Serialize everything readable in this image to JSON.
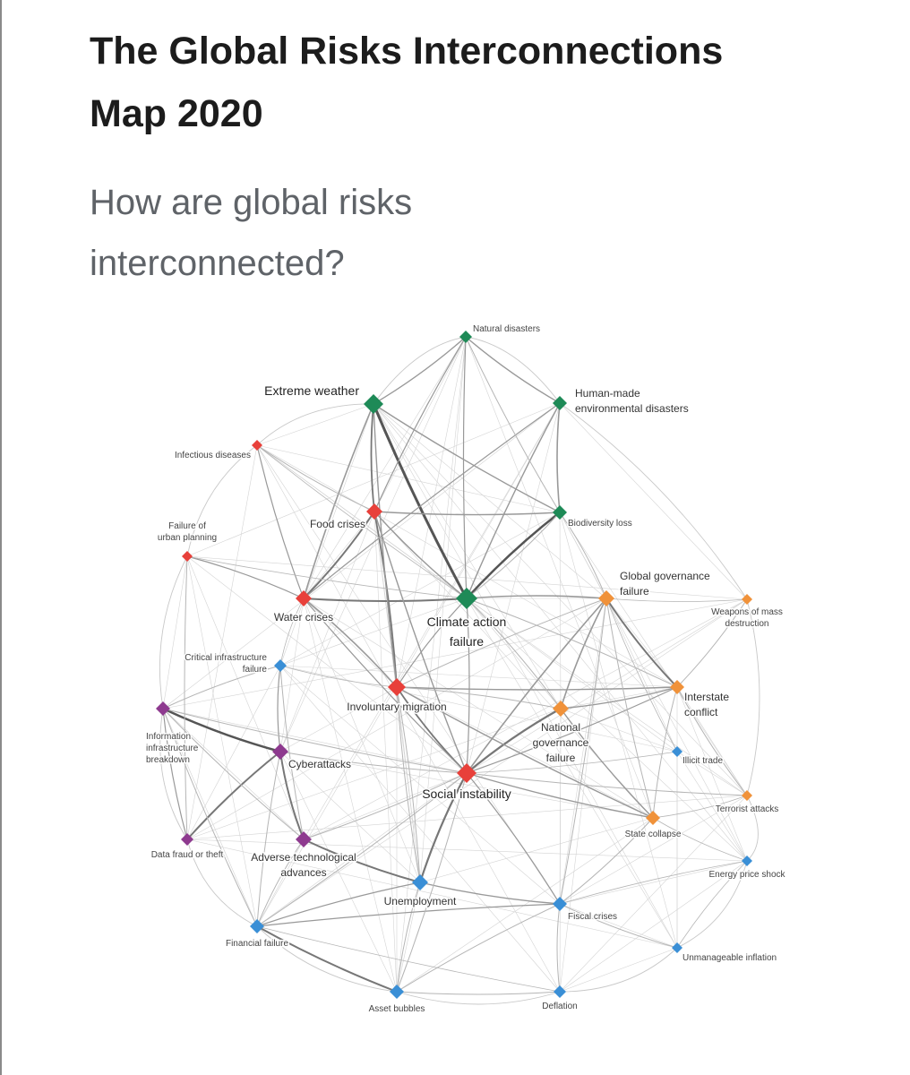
{
  "header": {
    "title_line1": "The Global Risks Interconnections",
    "title_line2": "Map 2020",
    "subtitle_line1": "How are global risks",
    "subtitle_line2": "interconnected?"
  },
  "colors": {
    "environmental": "#1e8a57",
    "societal": "#e8403a",
    "geopolitical": "#f0923a",
    "technological": "#8e3a8f",
    "economic": "#3a8fd6",
    "edge": "#9a9a9a"
  },
  "nodes": [
    {
      "id": "natural-disasters",
      "lines": [
        "Natural disasters"
      ],
      "category": "environmental"
    },
    {
      "id": "extreme-weather",
      "lines": [
        "Extreme weather"
      ],
      "category": "environmental"
    },
    {
      "id": "human-made-env",
      "lines": [
        "Human-made",
        "environmental disasters"
      ],
      "category": "environmental"
    },
    {
      "id": "infectious-diseases",
      "lines": [
        "Infectious diseases"
      ],
      "category": "societal"
    },
    {
      "id": "food-crises",
      "lines": [
        "Food crises"
      ],
      "category": "societal"
    },
    {
      "id": "biodiversity-loss",
      "lines": [
        "Biodiversity loss"
      ],
      "category": "environmental"
    },
    {
      "id": "urban-planning",
      "lines": [
        "Failure of",
        "urban planning"
      ],
      "category": "societal"
    },
    {
      "id": "global-governance",
      "lines": [
        "Global governance",
        "failure"
      ],
      "category": "geopolitical"
    },
    {
      "id": "water-crises",
      "lines": [
        "Water crises"
      ],
      "category": "societal"
    },
    {
      "id": "climate-action",
      "lines": [
        "Climate action",
        "failure"
      ],
      "category": "environmental"
    },
    {
      "id": "wmd",
      "lines": [
        "Weapons of mass",
        "destruction"
      ],
      "category": "geopolitical"
    },
    {
      "id": "critical-infra",
      "lines": [
        "Critical infrastructure",
        "failure"
      ],
      "category": "economic"
    },
    {
      "id": "involuntary-migration",
      "lines": [
        "Involuntary migration"
      ],
      "category": "societal"
    },
    {
      "id": "interstate-conflict",
      "lines": [
        "Interstate",
        "conflict"
      ],
      "category": "geopolitical"
    },
    {
      "id": "info-infra",
      "lines": [
        "Information",
        "infrastructure",
        "breakdown"
      ],
      "category": "technological"
    },
    {
      "id": "national-governance",
      "lines": [
        "National",
        "governance",
        "failure"
      ],
      "category": "geopolitical"
    },
    {
      "id": "cyberattacks",
      "lines": [
        "Cyberattacks"
      ],
      "category": "technological"
    },
    {
      "id": "illicit-trade",
      "lines": [
        "Illicit trade"
      ],
      "category": "economic"
    },
    {
      "id": "social-instability",
      "lines": [
        "Social instability"
      ],
      "category": "societal"
    },
    {
      "id": "terrorist-attacks",
      "lines": [
        "Terrorist attacks"
      ],
      "category": "geopolitical"
    },
    {
      "id": "state-collapse",
      "lines": [
        "State collapse"
      ],
      "category": "geopolitical"
    },
    {
      "id": "data-fraud",
      "lines": [
        "Data fraud or theft"
      ],
      "category": "technological"
    },
    {
      "id": "adverse-tech",
      "lines": [
        "Adverse technological",
        "advances"
      ],
      "category": "technological"
    },
    {
      "id": "energy-price",
      "lines": [
        "Energy price shock"
      ],
      "category": "economic"
    },
    {
      "id": "unemployment",
      "lines": [
        "Unemployment"
      ],
      "category": "economic"
    },
    {
      "id": "fiscal-crises",
      "lines": [
        "Fiscal crises"
      ],
      "category": "economic"
    },
    {
      "id": "financial-failure",
      "lines": [
        "Financial failure"
      ],
      "category": "economic"
    },
    {
      "id": "unmanageable-inflation",
      "lines": [
        "Unmanageable inflation"
      ],
      "category": "economic"
    },
    {
      "id": "asset-bubbles",
      "lines": [
        "Asset bubbles"
      ],
      "category": "economic"
    },
    {
      "id": "deflation",
      "lines": [
        "Deflation"
      ],
      "category": "economic"
    }
  ],
  "edges": [
    [
      "extreme-weather",
      "climate-action",
      3
    ],
    [
      "biodiversity-loss",
      "climate-action",
      2.5
    ],
    [
      "info-infra",
      "cyberattacks",
      2.5
    ],
    [
      "social-instability",
      "unemployment",
      2.2
    ],
    [
      "national-governance",
      "social-instability",
      2.2
    ],
    [
      "global-governance",
      "interstate-conflict",
      2
    ],
    [
      "cyberattacks",
      "data-fraud",
      2
    ],
    [
      "cyberattacks",
      "adverse-tech",
      2
    ],
    [
      "water-crises",
      "food-crises",
      2
    ],
    [
      "water-crises",
      "climate-action",
      2
    ],
    [
      "adverse-tech",
      "unemployment",
      2
    ],
    [
      "financial-failure",
      "asset-bubbles",
      2
    ],
    [
      "extreme-weather",
      "food-crises",
      1.8
    ],
    [
      "involuntary-migration",
      "food-crises",
      1.8
    ],
    [
      "involuntary-migration",
      "social-instability",
      1.8
    ],
    [
      "global-governance",
      "social-instability",
      1.6
    ],
    [
      "global-governance",
      "national-governance",
      1.6
    ],
    [
      "global-governance",
      "climate-action",
      1.6
    ],
    [
      "involuntary-migration",
      "water-crises",
      1.6
    ],
    [
      "involuntary-migration",
      "interstate-conflict",
      1.4
    ],
    [
      "involuntary-migration",
      "state-collapse",
      1.4
    ],
    [
      "national-governance",
      "interstate-conflict",
      1.4
    ],
    [
      "extreme-weather",
      "water-crises",
      1.6
    ],
    [
      "extreme-weather",
      "natural-disasters",
      1.4
    ],
    [
      "extreme-weather",
      "biodiversity-loss",
      1.4
    ],
    [
      "extreme-weather",
      "involuntary-migration",
      1.4
    ],
    [
      "natural-disasters",
      "human-made-env",
      1.4
    ],
    [
      "human-made-env",
      "biodiversity-loss",
      1.6
    ],
    [
      "human-made-env",
      "climate-action",
      1.4
    ],
    [
      "human-made-env",
      "water-crises",
      1.2
    ],
    [
      "natural-disasters",
      "climate-action",
      1.2
    ],
    [
      "natural-disasters",
      "food-crises",
      1.2
    ],
    [
      "food-crises",
      "biodiversity-loss",
      1.4
    ],
    [
      "food-crises",
      "climate-action",
      1.4
    ],
    [
      "food-crises",
      "social-instability",
      1.4
    ],
    [
      "water-crises",
      "social-instability",
      1.2
    ],
    [
      "water-crises",
      "urban-planning",
      1.2
    ],
    [
      "infectious-diseases",
      "water-crises",
      1.2
    ],
    [
      "infectious-diseases",
      "food-crises",
      1
    ],
    [
      "infectious-diseases",
      "climate-action",
      0.8
    ],
    [
      "urban-planning",
      "data-fraud",
      1
    ],
    [
      "urban-planning",
      "climate-action",
      0.8
    ],
    [
      "critical-infra",
      "cyberattacks",
      1.2
    ],
    [
      "critical-infra",
      "info-infra",
      1
    ],
    [
      "critical-infra",
      "adverse-tech",
      1
    ],
    [
      "info-infra",
      "data-fraud",
      1.2
    ],
    [
      "info-infra",
      "adverse-tech",
      1
    ],
    [
      "info-infra",
      "financial-failure",
      1
    ],
    [
      "info-infra",
      "social-instability",
      1
    ],
    [
      "cyberattacks",
      "social-instability",
      1
    ],
    [
      "cyberattacks",
      "financial-failure",
      1
    ],
    [
      "adverse-tech",
      "financial-failure",
      1
    ],
    [
      "adverse-tech",
      "social-instability",
      1
    ],
    [
      "unemployment",
      "fiscal-crises",
      1.4
    ],
    [
      "unemployment",
      "financial-failure",
      1.2
    ],
    [
      "unemployment",
      "asset-bubbles",
      1
    ],
    [
      "unemployment",
      "involuntary-migration",
      1
    ],
    [
      "fiscal-crises",
      "financial-failure",
      1.2
    ],
    [
      "fiscal-crises",
      "social-instability",
      1.2
    ],
    [
      "fiscal-crises",
      "unmanageable-inflation",
      1
    ],
    [
      "fiscal-crises",
      "deflation",
      1
    ],
    [
      "fiscal-crises",
      "asset-bubbles",
      1
    ],
    [
      "fiscal-crises",
      "state-collapse",
      1
    ],
    [
      "fiscal-crises",
      "global-governance",
      1
    ],
    [
      "asset-bubbles",
      "deflation",
      1
    ],
    [
      "asset-bubbles",
      "social-instability",
      1
    ],
    [
      "financial-failure",
      "social-instability",
      1
    ],
    [
      "financial-failure",
      "deflation",
      0.8
    ],
    [
      "social-instability",
      "state-collapse",
      1.4
    ],
    [
      "social-instability",
      "interstate-conflict",
      1.2
    ],
    [
      "social-instability",
      "climate-action",
      1.2
    ],
    [
      "social-instability",
      "terrorist-attacks",
      1
    ],
    [
      "social-instability",
      "illicit-trade",
      0.8
    ],
    [
      "national-governance",
      "state-collapse",
      1.4
    ],
    [
      "national-governance",
      "climate-action",
      1
    ],
    [
      "national-governance",
      "involuntary-migration",
      1
    ],
    [
      "interstate-conflict",
      "state-collapse",
      1
    ],
    [
      "interstate-conflict",
      "wmd",
      1
    ],
    [
      "interstate-conflict",
      "terrorist-attacks",
      1
    ],
    [
      "interstate-conflict",
      "climate-action",
      1
    ],
    [
      "global-governance",
      "wmd",
      0.8
    ],
    [
      "global-governance",
      "state-collapse",
      1
    ],
    [
      "global-governance",
      "illicit-trade",
      0.8
    ],
    [
      "global-governance",
      "involuntary-migration",
      1
    ],
    [
      "global-governance",
      "biodiversity-loss",
      1
    ],
    [
      "state-collapse",
      "energy-price",
      0.8
    ],
    [
      "state-collapse",
      "terrorist-attacks",
      0.8
    ],
    [
      "energy-price",
      "unmanageable-inflation",
      0.8
    ],
    [
      "energy-price",
      "fiscal-crises",
      0.8
    ],
    [
      "climate-action",
      "involuntary-migration",
      1.2
    ],
    [
      "climate-action",
      "biodiversity-loss",
      1
    ],
    [
      "critical-infra",
      "involuntary-migration",
      0.8
    ],
    [
      "involuntary-migration",
      "unemployment",
      1
    ],
    [
      "water-crises",
      "critical-infra",
      0.8
    ],
    [
      "natural-disasters",
      "biodiversity-loss",
      1
    ]
  ]
}
